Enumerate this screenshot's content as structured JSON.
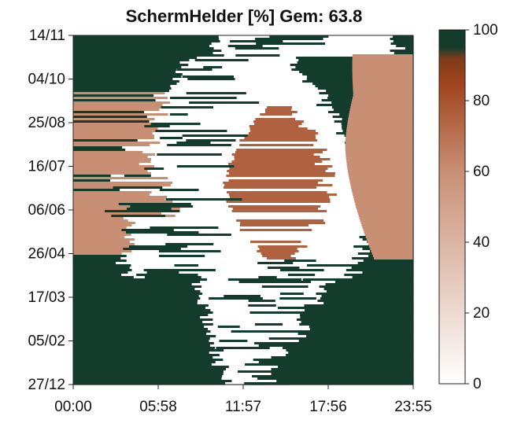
{
  "chart_data": {
    "type": "heatmap",
    "title": "SchermHelder [%] Gem: 63.8",
    "xlabel": "",
    "ylabel": "",
    "x_tick_labels": [
      "00:00",
      "05:58",
      "11:57",
      "17:56",
      "23:55"
    ],
    "y_tick_labels": [
      "14/11",
      "04/10",
      "25/08",
      "16/07",
      "06/06",
      "26/04",
      "17/03",
      "05/02",
      "27/12"
    ],
    "colorbar": {
      "range": [
        0,
        100
      ],
      "tick_labels": [
        "0",
        "20",
        "40",
        "60",
        "80",
        "100"
      ],
      "colors": [
        "#ffffff",
        "#c98f75",
        "#a0441c",
        "#143c2c"
      ]
    },
    "regions": {
      "night_value": 100,
      "daylight_value": 0,
      "shade_value_left": 60,
      "shade_value_right": 60,
      "midday_shade_value": 75,
      "midday_shade_months": "May–August",
      "shaded_afternoon_months": "April–October"
    }
  }
}
